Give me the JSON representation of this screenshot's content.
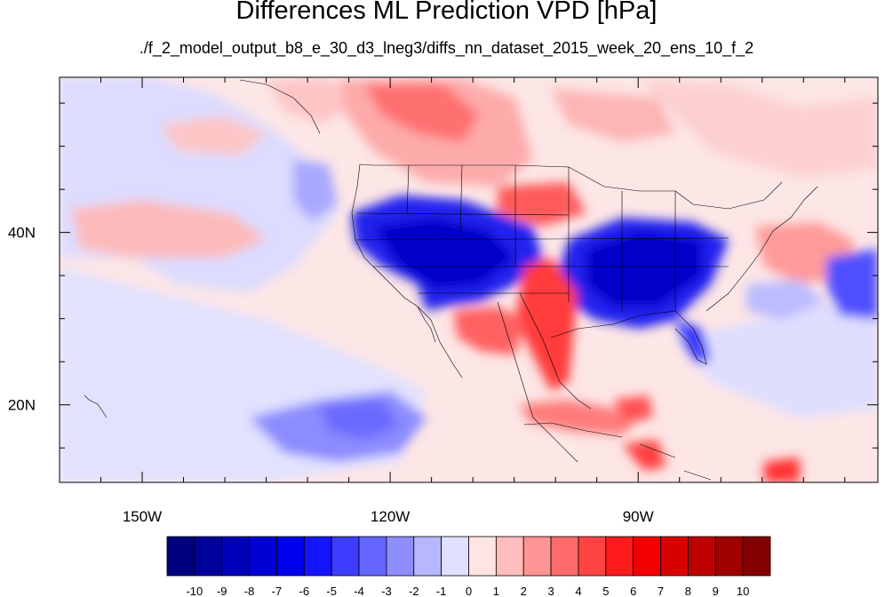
{
  "title": "Differences ML Prediction VPD [hPa]",
  "subtitle": "./f_2_model_output_b8_e_30_d3_lneg3/diffs_nn_dataset_2015_week_20_ens_10_f_2",
  "map": {
    "lon_range": [
      -160,
      -61
    ],
    "lat_range": [
      11,
      58
    ],
    "lon_ticks": [
      {
        "value": -150,
        "label": "150W"
      },
      {
        "value": -120,
        "label": "120W"
      },
      {
        "value": -90,
        "label": "90W"
      }
    ],
    "lat_ticks": [
      {
        "value": 40,
        "label": "40N"
      },
      {
        "value": 20,
        "label": "20N"
      }
    ]
  },
  "colorbar": {
    "labels": [
      "-10",
      "-9",
      "-8",
      "-7",
      "-6",
      "-5",
      "-4",
      "-3",
      "-2",
      "-1",
      "0",
      "1",
      "2",
      "3",
      "4",
      "5",
      "6",
      "7",
      "8",
      "9",
      "10"
    ],
    "colors": [
      "#00007f",
      "#00009c",
      "#0000b8",
      "#0000d4",
      "#0000ef",
      "#1414ff",
      "#3d3dff",
      "#6565ff",
      "#8e8eff",
      "#b7b7ff",
      "#e0e0ff",
      "#ffe4e4",
      "#ffbcbc",
      "#ff9494",
      "#ff6b6b",
      "#ff4343",
      "#ff1b1b",
      "#f50000",
      "#d90000",
      "#bd0000",
      "#a10000",
      "#850000"
    ]
  }
}
